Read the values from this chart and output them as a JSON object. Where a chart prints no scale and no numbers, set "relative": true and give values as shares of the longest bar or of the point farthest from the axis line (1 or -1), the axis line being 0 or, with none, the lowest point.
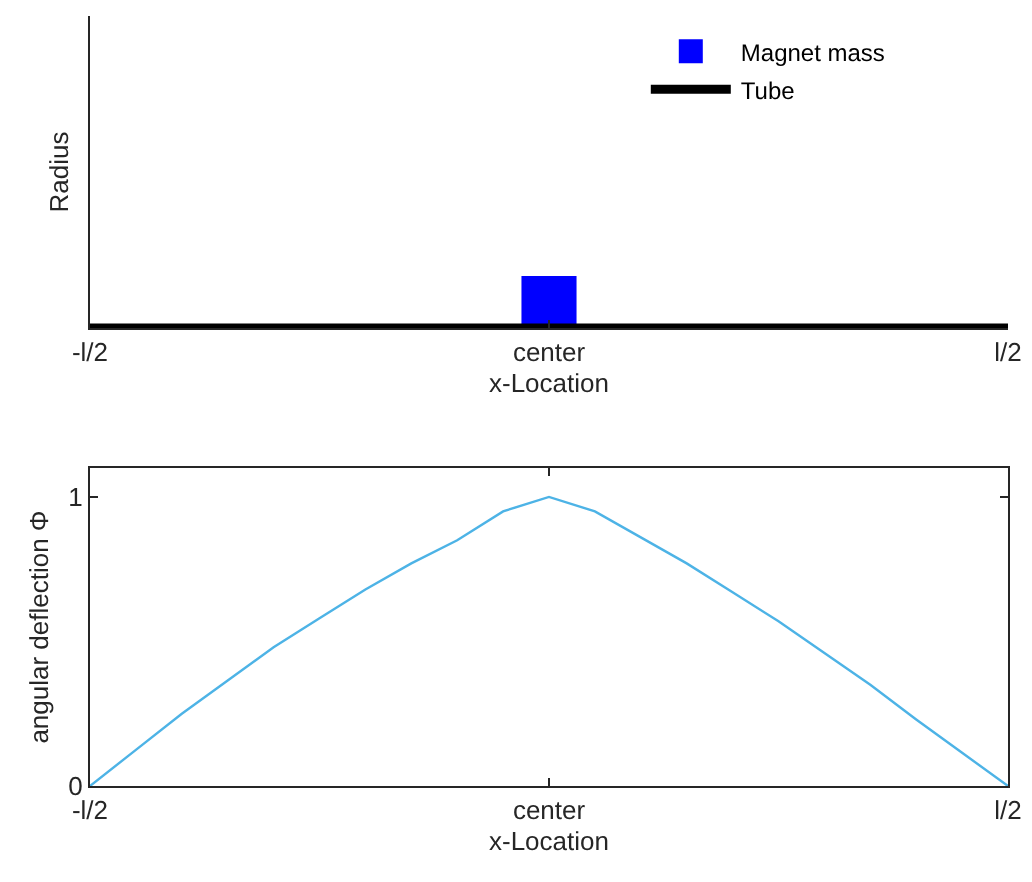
{
  "chart_data": [
    {
      "type": "bar",
      "relative": true,
      "xlabel": "x-Location",
      "ylabel": "Radius",
      "categories": [
        "-l/2",
        null,
        null,
        null,
        null,
        null,
        null,
        null,
        null,
        null,
        "center",
        null,
        null,
        null,
        null,
        null,
        null,
        null,
        null,
        null,
        "l/2"
      ],
      "legend": "top right",
      "series": [
        {
          "name": "Magnet mass",
          "color": "#0000ff",
          "values": [
            null,
            null,
            null,
            null,
            null,
            null,
            null,
            null,
            null,
            null,
            1,
            null,
            null,
            null,
            null,
            null,
            null,
            null,
            null,
            null,
            null
          ]
        },
        {
          "name": "Tube",
          "type": "line",
          "color": "#000000",
          "values": [
            0,
            0,
            0,
            0,
            0,
            0,
            0,
            0,
            0,
            0,
            0,
            0,
            0,
            0,
            0,
            0,
            0,
            0,
            0,
            0,
            0
          ]
        }
      ]
    },
    {
      "type": "line",
      "xlabel": "x-Location",
      "ylabel": "angular deflection Φ",
      "categories": [
        "-l/2",
        null,
        null,
        null,
        null,
        null,
        null,
        null,
        null,
        null,
        "center",
        null,
        null,
        null,
        null,
        null,
        null,
        null,
        null,
        null,
        "l/2"
      ],
      "ylim": [
        0,
        1.1
      ],
      "yticks": [
        0,
        1
      ],
      "series": [
        {
          "color": "#4db3e6",
          "values": [
            0,
            0.125,
            0.25,
            0.365,
            0.48,
            0.58,
            0.68,
            0.77,
            0.85,
            0.95,
            1,
            0.95,
            0.86,
            0.77,
            0.67,
            0.57,
            0.46,
            0.35,
            0.23,
            0.115,
            0
          ]
        }
      ]
    }
  ]
}
